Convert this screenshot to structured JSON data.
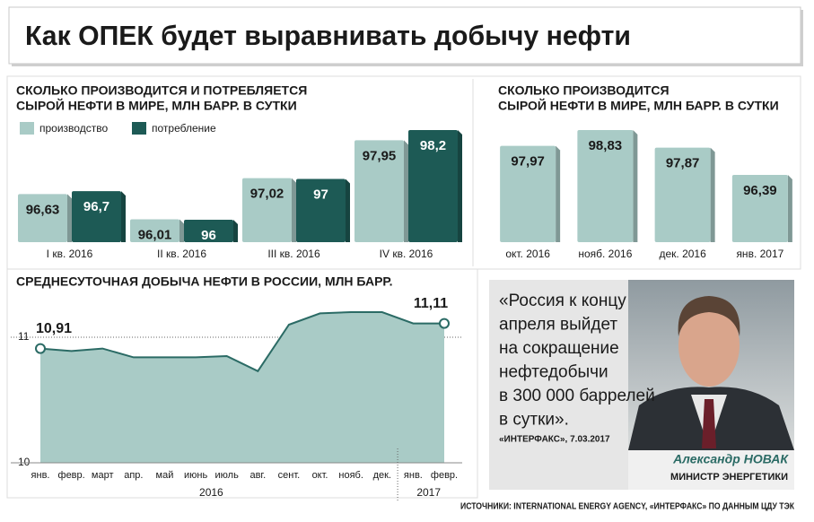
{
  "title": "Как ОПЕК будет выравнивать добычу нефти",
  "chart_data": [
    {
      "type": "bar",
      "title": [
        "СКОЛЬКО ПРОИЗВОДИТСЯ И ПОТРЕБЛЯЕТСЯ",
        "СЫРОЙ НЕФТИ В МИРЕ, МЛН БАРР. В СУТКИ"
      ],
      "categories": [
        "I кв. 2016",
        "II кв. 2016",
        "III кв. 2016",
        "IV кв. 2016"
      ],
      "series": [
        {
          "name": "производство",
          "color": "#a9cbc6",
          "values": [
            96.63,
            96.01,
            97.02,
            97.95
          ],
          "value_labels": [
            "96,63",
            "96,01",
            "97,02",
            "97,95"
          ]
        },
        {
          "name": "потребление",
          "color": "#1d5a55",
          "values": [
            96.7,
            96,
            97,
            98.2
          ],
          "value_labels": [
            "96,7",
            "96",
            "97",
            "98,2"
          ]
        }
      ],
      "legend": "top-left"
    },
    {
      "type": "bar",
      "title": [
        "СКОЛЬКО ПРОИЗВОДИТСЯ",
        "СЫРОЙ НЕФТИ В МИРЕ, МЛН БАРР. В СУТКИ"
      ],
      "categories": [
        "окт. 2016",
        "нояб. 2016",
        "дек. 2016",
        "янв. 2017"
      ],
      "values": [
        97.97,
        98.83,
        97.87,
        96.39
      ],
      "value_labels": [
        "97,97",
        "98,83",
        "97,87",
        "96,39"
      ],
      "color": "#a9cbc6"
    },
    {
      "type": "area",
      "title": "СРЕДНЕСУТОЧНАЯ ДОБЫЧА НЕФТИ В РОССИИ, МЛН БАРР.",
      "categories": [
        "янв.",
        "февр.",
        "март",
        "апр.",
        "май",
        "июнь",
        "июль",
        "авг.",
        "сент.",
        "окт.",
        "нояб.",
        "дек.",
        "янв.",
        "февр."
      ],
      "x_groups": [
        {
          "label": "2016",
          "start": 0,
          "end": 11
        },
        {
          "label": "2017",
          "start": 12,
          "end": 13
        }
      ],
      "values": [
        10.91,
        10.89,
        10.91,
        10.84,
        10.84,
        10.84,
        10.85,
        10.73,
        11.1,
        11.19,
        11.2,
        11.2,
        11.11,
        11.11
      ],
      "value_labels": [
        "10,91",
        null,
        null,
        null,
        null,
        null,
        null,
        null,
        null,
        null,
        null,
        null,
        null,
        "11,11"
      ],
      "ylim": [
        10,
        11.3
      ],
      "yticks": [
        10,
        11
      ],
      "grid": true,
      "color": "#a9cbc6",
      "line_color": "#2b6b65"
    }
  ],
  "quote": {
    "text": [
      "«Россия к концу",
      "апреля выйдет",
      "на сокращение",
      "нефтедобычи",
      "в 300 000 баррелей",
      "в сутки»."
    ],
    "source": "«ИНТЕРФАКС», 7.03.2017",
    "name": "Александр НОВАК",
    "role": "МИНИСТР ЭНЕРГЕТИКИ"
  },
  "source": "ИСТОЧНИКИ: INTERNATIONAL ENERGY AGENCY, «ИНТЕРФАКС» ПО ДАННЫМ ЦДУ ТЭК"
}
